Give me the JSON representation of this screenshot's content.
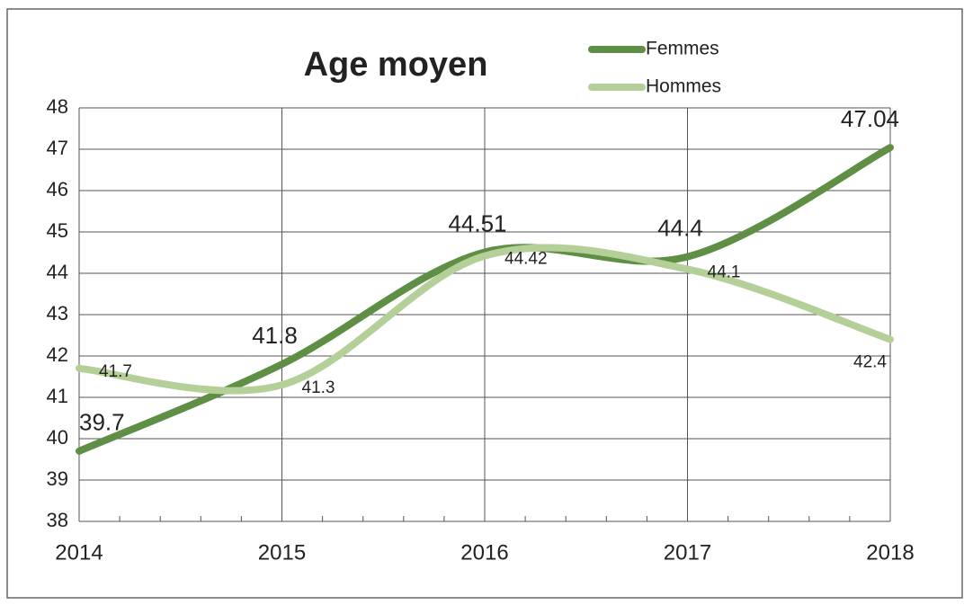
{
  "chart_data": {
    "type": "line",
    "title": "Age moyen",
    "categories": [
      "2014",
      "2015",
      "2016",
      "2017",
      "2018"
    ],
    "series": [
      {
        "name": "Femmes",
        "color": "#5e8f45",
        "values": [
          39.7,
          41.8,
          44.51,
          44.4,
          47.04
        ]
      },
      {
        "name": "Hommes",
        "color": "#b5cf98",
        "values": [
          41.7,
          41.3,
          44.42,
          44.1,
          42.4
        ]
      }
    ],
    "ylim": [
      38,
      48
    ],
    "yticks": [
      38,
      39,
      40,
      41,
      42,
      43,
      44,
      45,
      46,
      47,
      48
    ],
    "grid": true,
    "legend": "top-right",
    "smooth": true
  }
}
